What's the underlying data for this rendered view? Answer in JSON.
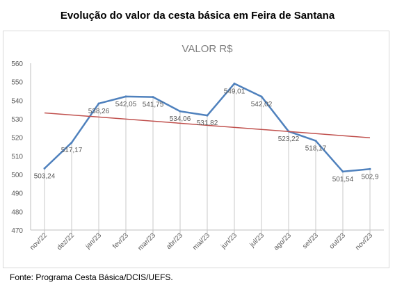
{
  "page": {
    "title": "Evolução do valor da cesta básica em Feira de Santana",
    "source": "Fonte: Programa Cesta Básica/DCIS/UEFS."
  },
  "chart_data": {
    "type": "line",
    "title": "VALOR R$",
    "categories": [
      "nov/22",
      "dez/22",
      "jan/23",
      "fev/23",
      "mar/23",
      "abr/23",
      "mai/23",
      "jun/23",
      "jul/23",
      "ago/23",
      "set/23",
      "out/23",
      "nov/23"
    ],
    "series": [
      {
        "values": [
          503.24,
          517.17,
          538.26,
          542.05,
          541.75,
          534.06,
          531.82,
          549.01,
          542.02,
          523.22,
          518.17,
          501.54,
          502.9
        ],
        "labels": [
          "503,24",
          "517,17",
          "538,26",
          "542,05",
          "541,75",
          "534,06",
          "531,82",
          "549,01",
          "542,02",
          "523,22",
          "518,17",
          "501,54",
          "502,9"
        ],
        "color": "#4f81bd"
      }
    ],
    "trendline": {
      "start": 533.2,
      "end": 519.8,
      "color": "#c0504d"
    },
    "ylim": [
      470,
      560
    ],
    "yticks": [
      470,
      480,
      490,
      500,
      510,
      520,
      530,
      540,
      550,
      560
    ],
    "grid": false,
    "drop_lines": true,
    "colors": {
      "axis": "#bfbfbf",
      "drop_line": "#c8c8c8",
      "tick_label": "#595959",
      "title": "#7f7f7f"
    }
  }
}
